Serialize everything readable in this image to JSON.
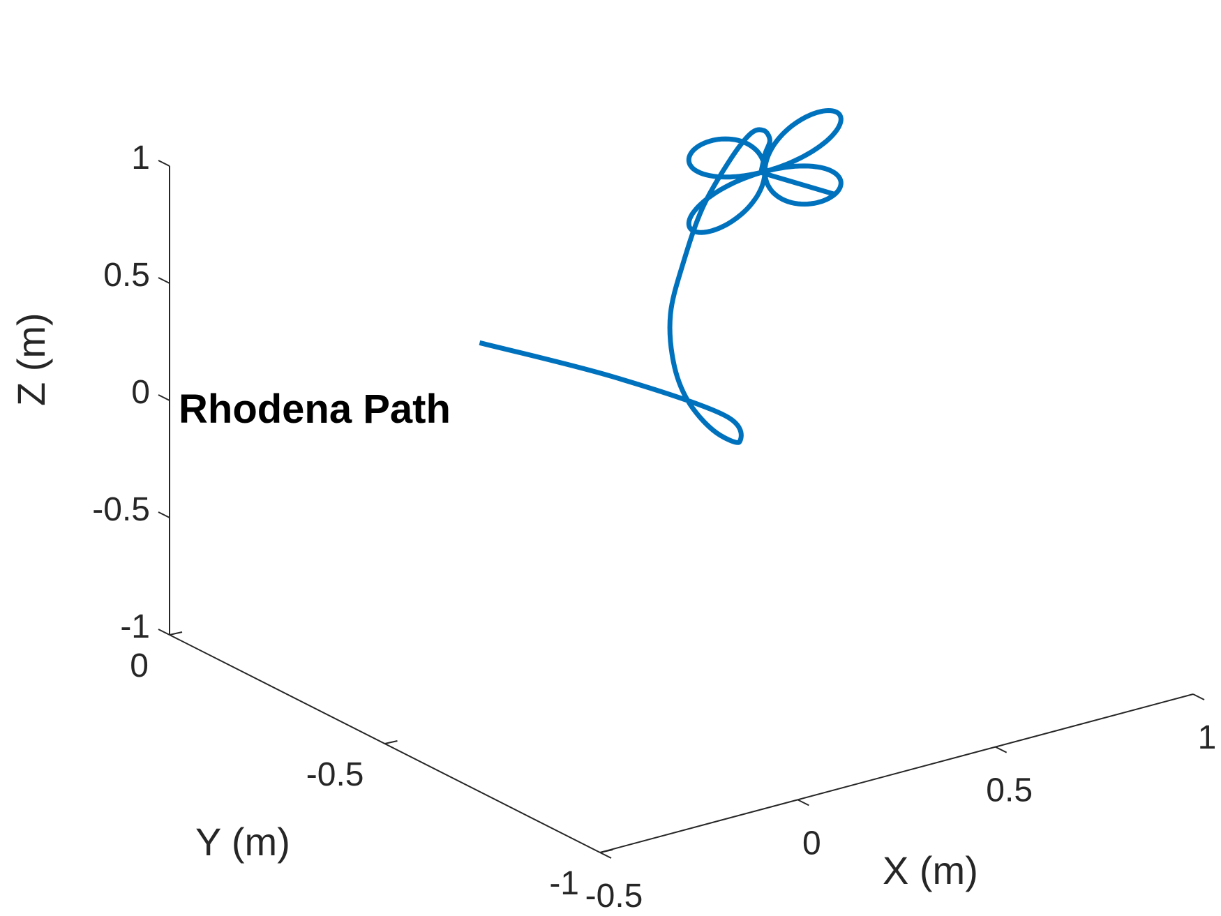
{
  "chart_data": {
    "type": "line3d",
    "title": "",
    "xlabel": "X (m)",
    "ylabel": "Y (m)",
    "zlabel": "Z (m)",
    "xlim": [
      -0.5,
      1
    ],
    "ylim": [
      -1,
      0
    ],
    "zlim": [
      -1,
      1
    ],
    "xticks": [
      -0.5,
      0,
      0.5,
      1
    ],
    "xtick_labels": [
      "-0.5",
      "0",
      "0.5",
      "1"
    ],
    "yticks": [
      -1,
      -0.5,
      0
    ],
    "ytick_labels": [
      "-1",
      "-0.5",
      "0"
    ],
    "zticks": [
      -1,
      -0.5,
      0,
      0.5,
      1
    ],
    "ztick_labels": [
      "-1",
      "-0.5",
      "0",
      "0.5",
      "1"
    ],
    "grid": false,
    "line_color": "#0072BD",
    "annotation": "Rhodena Path",
    "series": [
      {
        "path_points": [
          [
            0.11,
            -0.16,
            0.12
          ],
          [
            0.38,
            -0.22,
            -0.09
          ],
          [
            0.6,
            -0.28,
            -0.3
          ],
          [
            0.56,
            -0.35,
            -0.33
          ],
          [
            0.44,
            -0.4,
            -0.18
          ],
          [
            0.32,
            -0.45,
            0.05
          ],
          [
            0.23,
            -0.5,
            0.3
          ],
          [
            0.19,
            -0.53,
            0.55
          ],
          [
            0.2,
            -0.55,
            0.78
          ],
          [
            0.26,
            -0.54,
            0.98
          ],
          [
            0.37,
            -0.5,
            1.09
          ],
          [
            0.49,
            -0.44,
            1.1
          ],
          [
            0.6,
            -0.37,
            1.0
          ],
          [
            0.67,
            -0.32,
            0.88
          ],
          [
            0.68,
            -0.3,
            0.8
          ],
          [
            0.68,
            -0.29,
            0.71
          ]
        ],
        "rose_center": [
          0.69,
          -0.29,
          0.71
        ],
        "rose_radius": 0.25,
        "rose_petals": 4
      }
    ]
  }
}
